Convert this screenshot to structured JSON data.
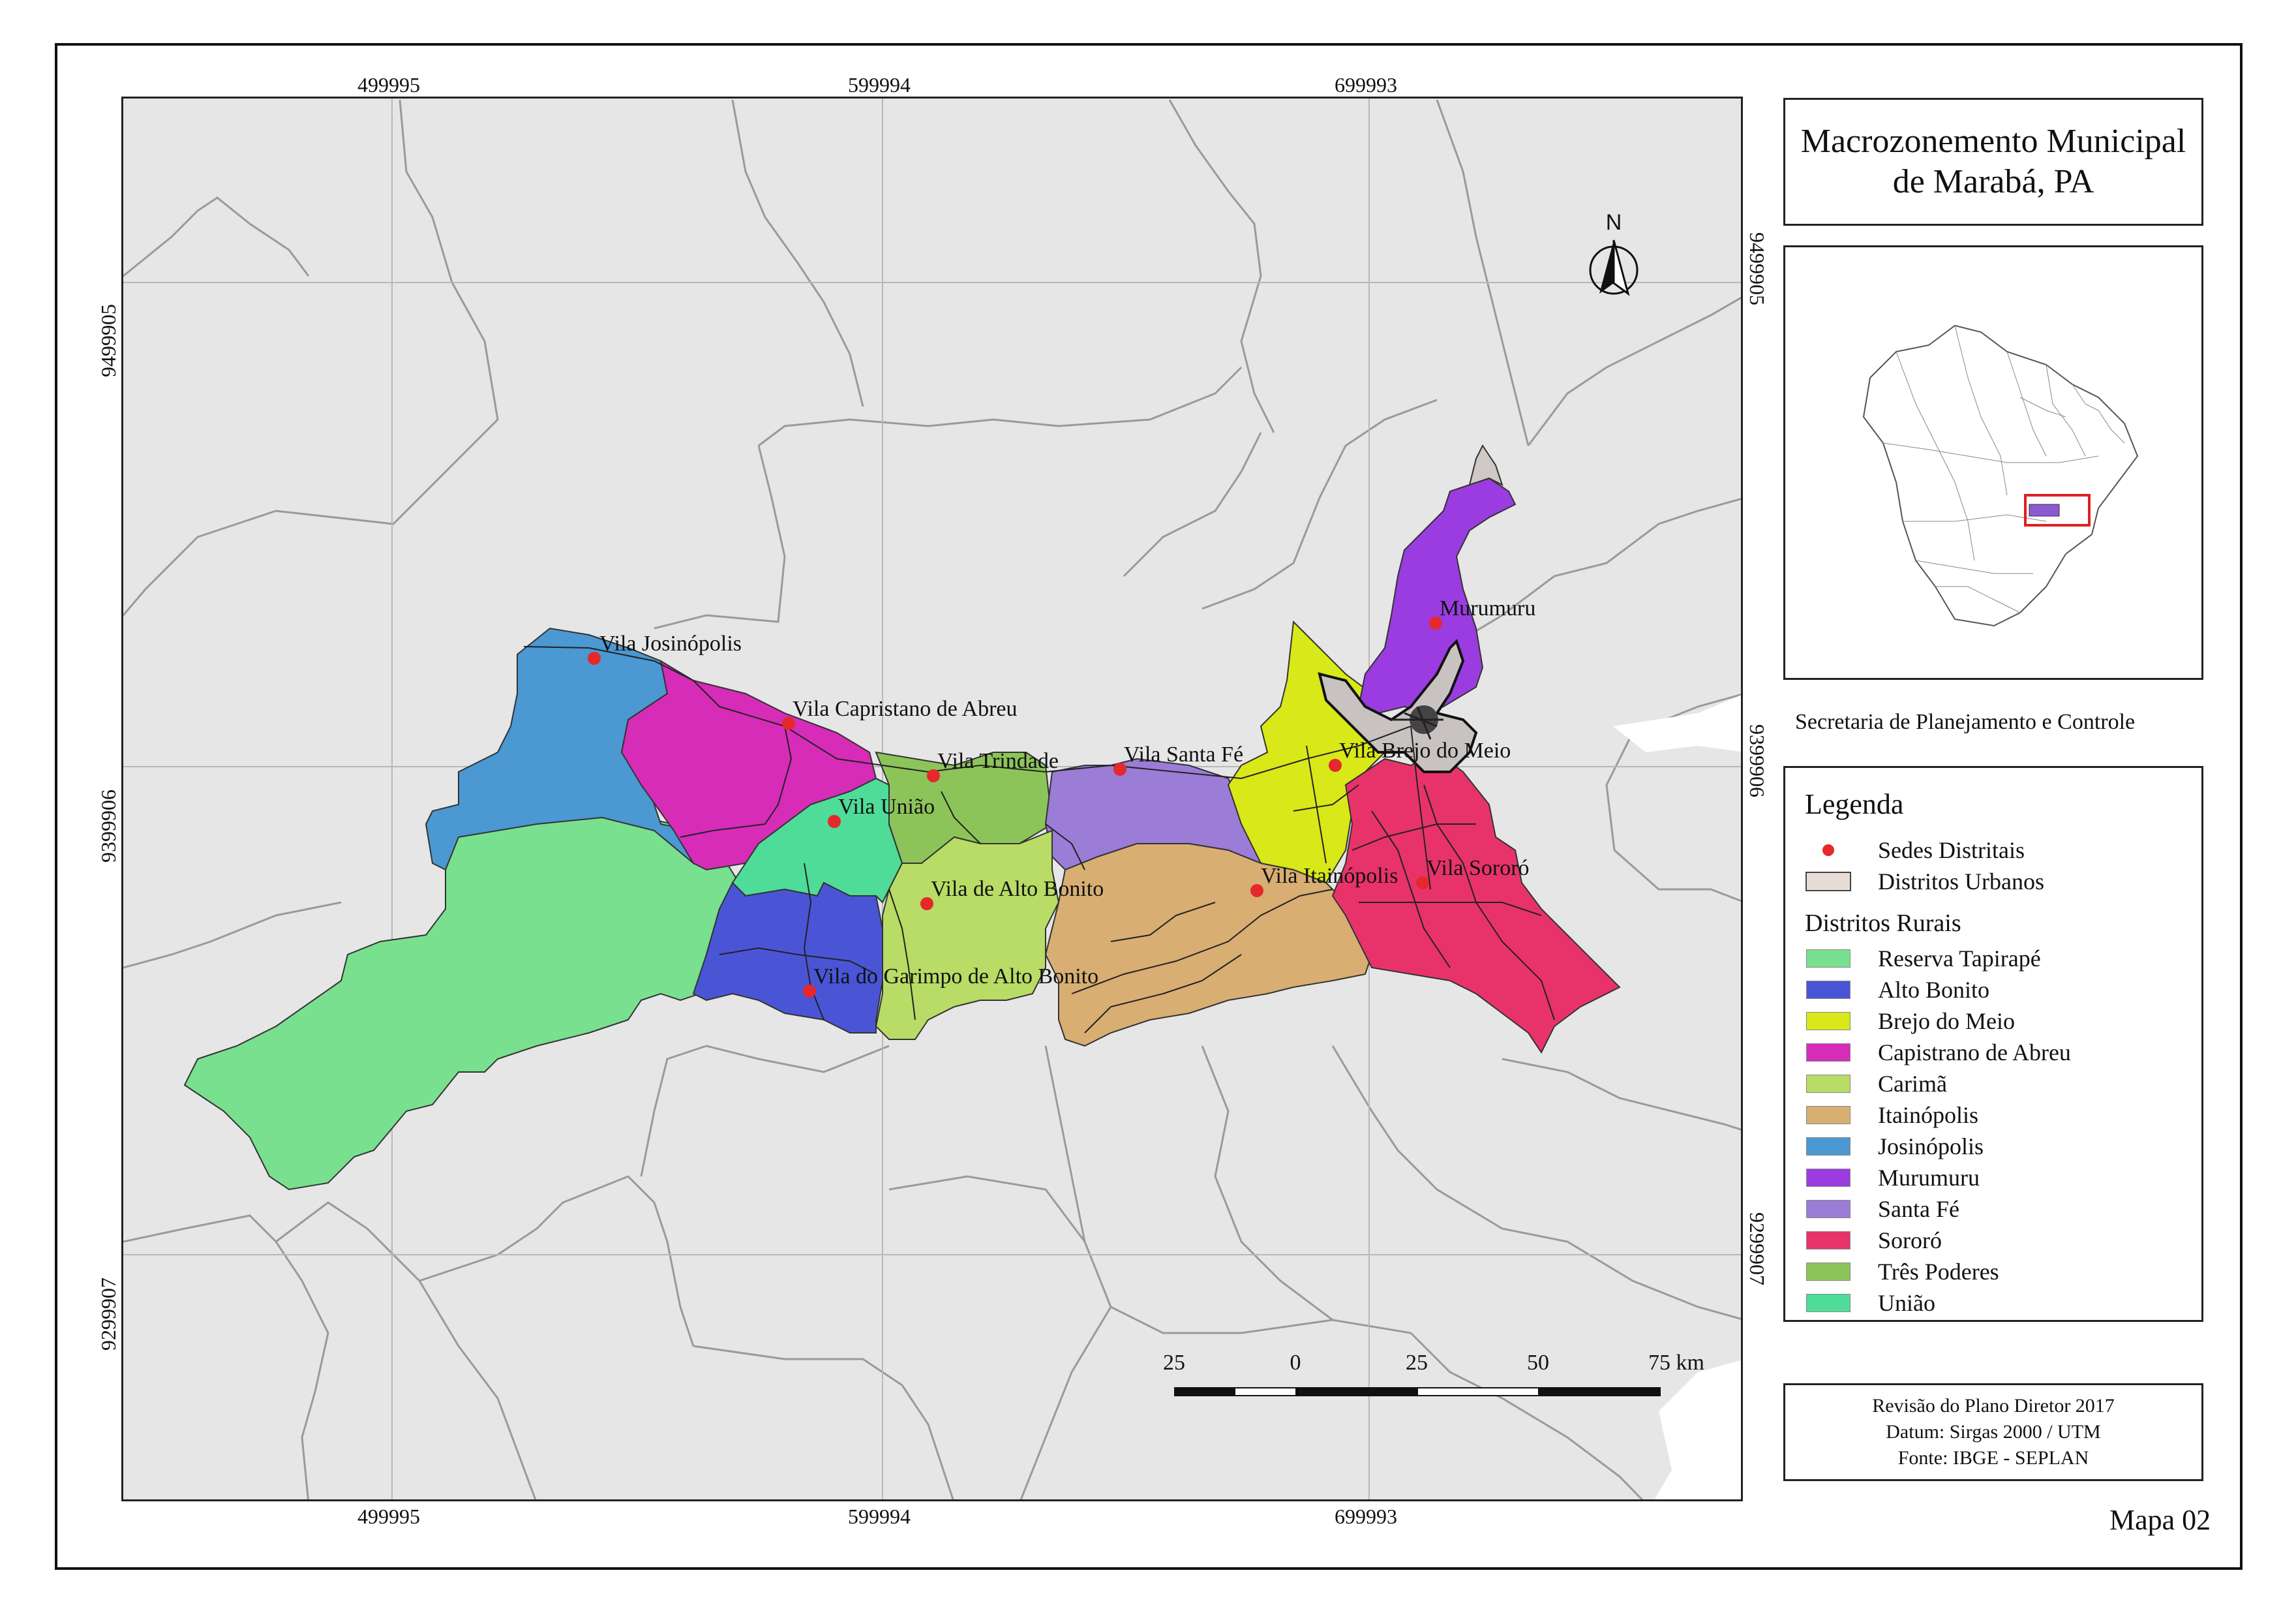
{
  "title": "Macrozonemento Municipal\nde Marabá, PA",
  "agency": "Secretaria de Planejamento e Controle",
  "map_number": "Mapa 02",
  "grid": {
    "x_labels": [
      "499995",
      "599994",
      "699993"
    ],
    "y_labels": [
      "9499905",
      "9399906",
      "9299907"
    ]
  },
  "north_label": "N",
  "scale_bar": {
    "labels": [
      "25",
      "0",
      "25",
      "50",
      "75 km"
    ]
  },
  "legend": {
    "title": "Legenda",
    "point_item": {
      "label": "Sedes Distritais",
      "color": "#e5282b"
    },
    "urban_item": {
      "label": "Distritos Urbanos",
      "color": "#e8dcd6"
    },
    "rural_title": "Distritos Rurais",
    "rural_items": [
      {
        "label": "Reserva Tapirapé",
        "color": "#78e08f"
      },
      {
        "label": "Alto Bonito",
        "color": "#4a55d6"
      },
      {
        "label": "Brejo do Meio",
        "color": "#d8e818"
      },
      {
        "label": "Capistrano de Abreu",
        "color": "#d62cb8"
      },
      {
        "label": "Carimã",
        "color": "#b8dc66"
      },
      {
        "label": "Itainópolis",
        "color": "#d8ae72"
      },
      {
        "label": "Josinópolis",
        "color": "#4b98d2"
      },
      {
        "label": "Murumuru",
        "color": "#9a3ce0"
      },
      {
        "label": "Santa Fé",
        "color": "#9b7cd6"
      },
      {
        "label": "Sororó",
        "color": "#e8336a"
      },
      {
        "label": "Três Poderes",
        "color": "#8cc45a"
      },
      {
        "label": "União",
        "color": "#4fdc98"
      }
    ]
  },
  "places": [
    "Vila Josinópolis",
    "Vila Capristano de Abreu",
    "Vila Trindade",
    "Vila Santa Fé",
    "Vila União",
    "Vila de Alto Bonito",
    "Vila do Garimpo de Alto Bonito",
    "Vila Itainópolis",
    "Vila Sororó",
    "Vila Brejo do Meio",
    "Murumuru"
  ],
  "info": {
    "line1": "Revisão do Plano Diretor 2017",
    "line2": "Datum: Sirgas 2000 / UTM",
    "line3": "Fonte: IBGE - SEPLAN"
  }
}
